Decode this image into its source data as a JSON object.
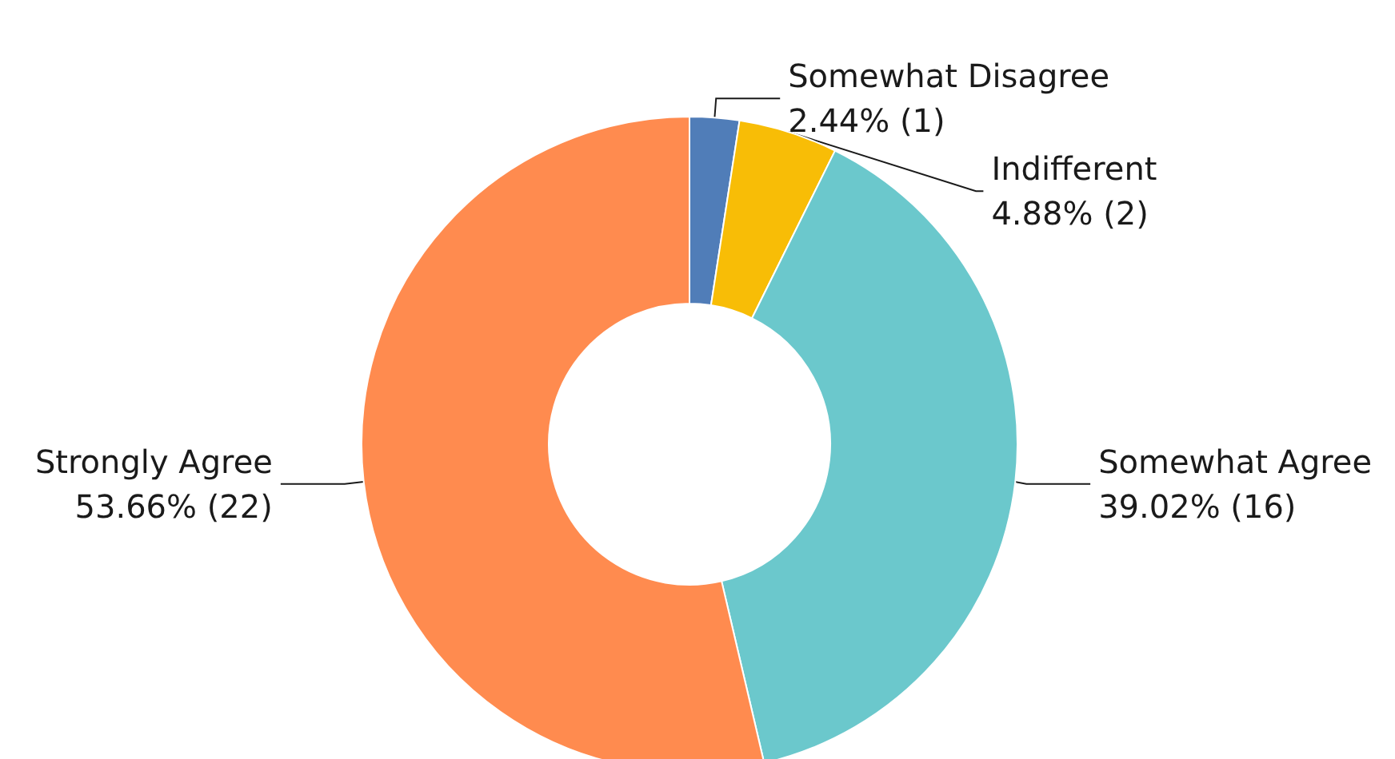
{
  "chart_data": {
    "type": "donut",
    "categories": [
      "Somewhat Disagree",
      "Indifferent",
      "Somewhat Agree",
      "Strongly Agree"
    ],
    "values": [
      1,
      2,
      16,
      22
    ],
    "value_labels": [
      "2.44% (1)",
      "4.88% (2)",
      "39.02% (16)",
      "53.66% (22)"
    ],
    "colors": [
      "#507db8",
      "#f8bd06",
      "#6bc8cc",
      "#ff8b4f"
    ]
  }
}
